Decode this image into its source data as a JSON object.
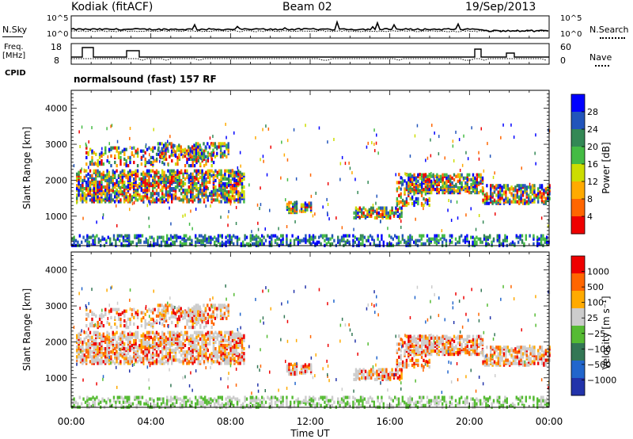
{
  "header": {
    "station": "Kodiak (fitACF)",
    "beam": "Beam 02",
    "date": "19/Sep/2013"
  },
  "left_labels": {
    "nsky": "N.Sky",
    "freq_line1": "Freq.",
    "freq_line2": "[MHz]",
    "cpid": "CPID"
  },
  "right_labels": {
    "nsearch": "N.Search",
    "nave": "Nave"
  },
  "strip_ticks": {
    "noise_left": [
      "10^5",
      "10^0"
    ],
    "noise_right": [
      "10^5",
      "10^0"
    ],
    "freq_left": [
      "18",
      "8"
    ],
    "nave_right": [
      "60",
      "0"
    ]
  },
  "cpid_text": "normalsound (fast) 157 RF",
  "colors": {
    "power_scale": [
      "#0000ff",
      "#2255bb",
      "#338855",
      "#44bb44",
      "#ccdd00",
      "#ffaa00",
      "#ff6600",
      "#ee0000"
    ],
    "velocity_scale": [
      "#2233aa",
      "#2266cc",
      "#337755",
      "#55bb33",
      "#cccccc",
      "#ffaa00",
      "#ff6600",
      "#ee0000"
    ]
  },
  "chart_data": [
    {
      "type": "heatmap",
      "panel": "power",
      "ylabel": "Slant Range [km]",
      "ylim": [
        180,
        4500
      ],
      "yticks": [
        "4000",
        "3000",
        "2000",
        "1000"
      ],
      "colorbar_label": "Power [dB]",
      "colorbar_ticks": [
        "28",
        "24",
        "20",
        "16",
        "12",
        "8",
        "4"
      ],
      "clim": [
        0,
        32
      ]
    },
    {
      "type": "heatmap",
      "panel": "velocity",
      "ylabel": "Slant Range [km]",
      "ylim": [
        180,
        4500
      ],
      "yticks": [
        "4000",
        "3000",
        "2000",
        "1000"
      ],
      "colorbar_label": "Velocity [m s⁻¹]",
      "colorbar_ticks": [
        "1000",
        "500",
        "100",
        "25",
        "−25",
        "−100",
        "−500",
        "−1000"
      ]
    }
  ],
  "xaxis": {
    "label": "Time UT",
    "ticks": [
      "00:00",
      "04:00",
      "08:00",
      "12:00",
      "16:00",
      "20:00",
      "00:00"
    ]
  }
}
